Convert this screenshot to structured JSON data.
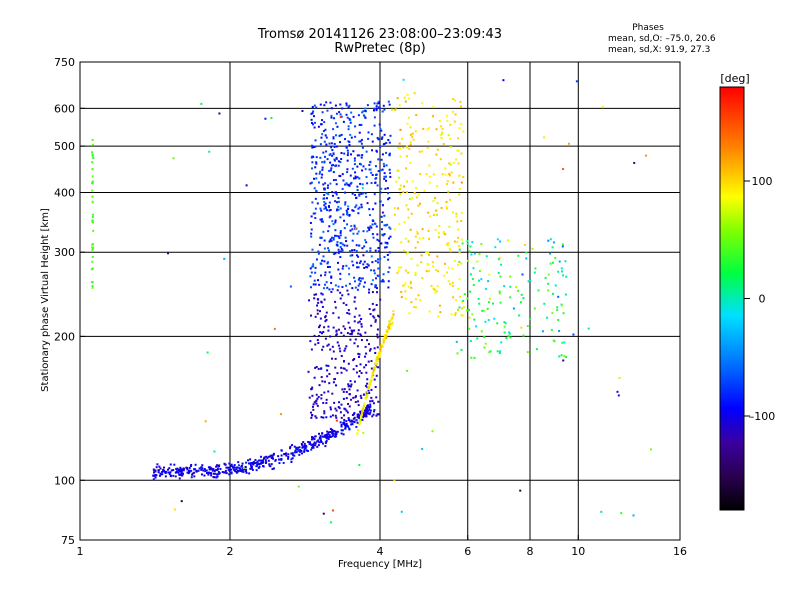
{
  "chart_data": {
    "type": "scatter",
    "title": "Tromsø 20141126 23:08:00–23:09:43",
    "subtitle": "RwPretec (8p)",
    "stats": {
      "heading": "Phases",
      "line_o": "mean, sd,O: –75.0, 20.6",
      "line_x": "mean, sd,X: 91.9, 27.3"
    },
    "xlabel": "Frequency [MHz]",
    "ylabel": "Stationary phase Virtual Height [km]",
    "xscale": "log",
    "yscale": "log",
    "xlim": [
      1,
      16
    ],
    "ylim": [
      75,
      750
    ],
    "x_ticks": [
      1,
      2,
      4,
      6,
      8,
      10,
      16
    ],
    "x_ticklabels": [
      "1",
      "2",
      "4",
      "6",
      "8",
      "10",
      "16"
    ],
    "y_ticks": [
      75,
      100,
      200,
      300,
      400,
      500,
      600,
      750
    ],
    "y_ticklabels": [
      "75",
      "100",
      "200",
      "300",
      "400",
      "500",
      "600",
      "750"
    ],
    "x_gridlines": [
      2,
      4,
      6,
      8,
      10
    ],
    "y_gridlines": [
      100,
      200,
      300,
      400,
      500,
      600
    ],
    "colorbar": {
      "label": "[deg]",
      "range": [
        -180,
        180
      ],
      "ticks": [
        100,
        0,
        -100
      ],
      "ticklabels": [
        "100",
        "0",
        "–100"
      ]
    },
    "series": [
      {
        "description": "E-region trace",
        "x_range": [
          1.4,
          3.9
        ],
        "y_range": [
          100,
          150
        ],
        "phase_deg": -100
      },
      {
        "description": "Lower F trace",
        "x_range": [
          2.9,
          4.0
        ],
        "y_range": [
          135,
          250
        ],
        "phase_deg": -110
      },
      {
        "description": "F-layer echoes",
        "x_range": [
          2.8,
          4.2
        ],
        "y_range": [
          250,
          620
        ],
        "phase_deg": -80
      },
      {
        "description": "X-mode trace",
        "x_range": [
          3.6,
          5.9
        ],
        "y_range": [
          120,
          650
        ],
        "phase_deg": 95
      },
      {
        "description": "Scattered echoes",
        "x_range": [
          5.7,
          9.5
        ],
        "y_range": [
          180,
          320
        ],
        "phase_deg": 20
      }
    ]
  }
}
